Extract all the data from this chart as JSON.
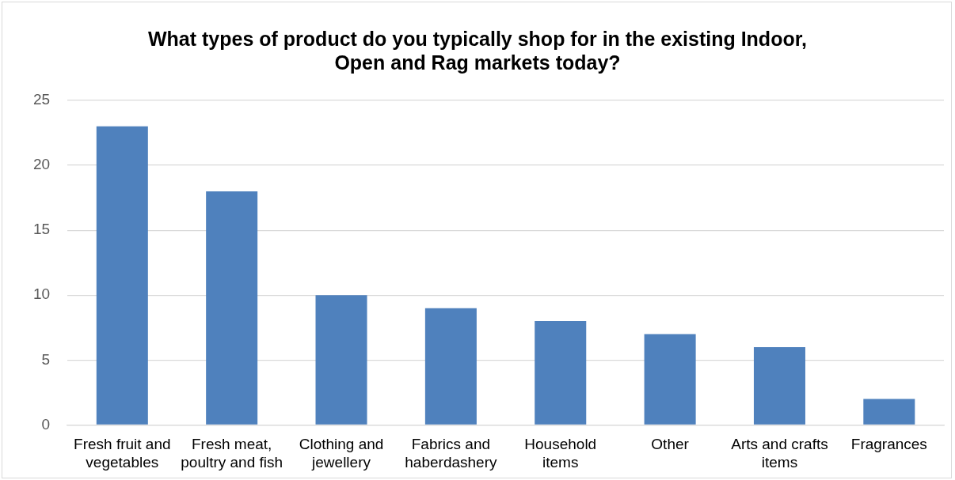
{
  "chart_data": {
    "type": "bar",
    "title": "What types of product do you typically shop for in the existing Indoor, Open and Rag markets today?",
    "categories": [
      "Fresh fruit and vegetables",
      "Fresh meat, poultry and fish",
      "Clothing and jewellery",
      "Fabrics and haberdashery",
      "Household items",
      "Other",
      "Arts and crafts items",
      "Fragrances"
    ],
    "values": [
      23,
      18,
      10,
      9,
      8,
      7,
      6,
      2
    ],
    "color": "#4f81bd",
    "ylim": [
      0,
      25
    ],
    "yticks": [
      0,
      5,
      10,
      15,
      20,
      25
    ],
    "grid": "y",
    "legend": false
  }
}
